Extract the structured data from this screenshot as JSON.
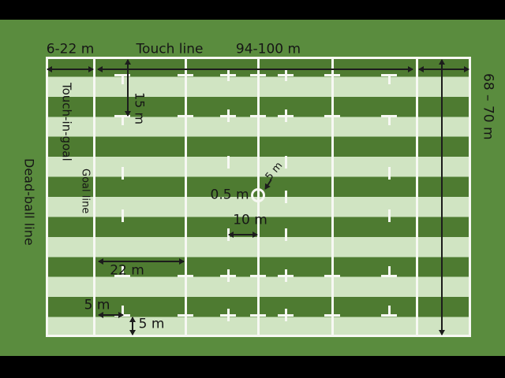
{
  "diagram": {
    "subject": "rugby-field-dimensions",
    "labels": {
      "in_goal_depth": "6-22 m",
      "touch_line": "Touch line",
      "field_length": "94-100 m",
      "field_width": "68 – 70 m",
      "touch_in_goal": "Touch-in-goal",
      "goal_line": "Goal line",
      "dead_ball_line": "Dead-ball line",
      "fifteen_m": "15 m",
      "centre_circle_radius": "0.5 m",
      "five_m_centre": "5 m",
      "ten_m": "10 m",
      "twenty_two_m": "22 m",
      "five_m_goal": "5 m",
      "five_m_touch": "5 m"
    },
    "colors": {
      "letterbox": "#000000",
      "background_green": "#5a8c3e",
      "stripe_dark": "#4e7b31",
      "stripe_light": "#d0e4c2",
      "line_white": "#f7f8f3",
      "annotation": "#1c1c1c"
    }
  }
}
